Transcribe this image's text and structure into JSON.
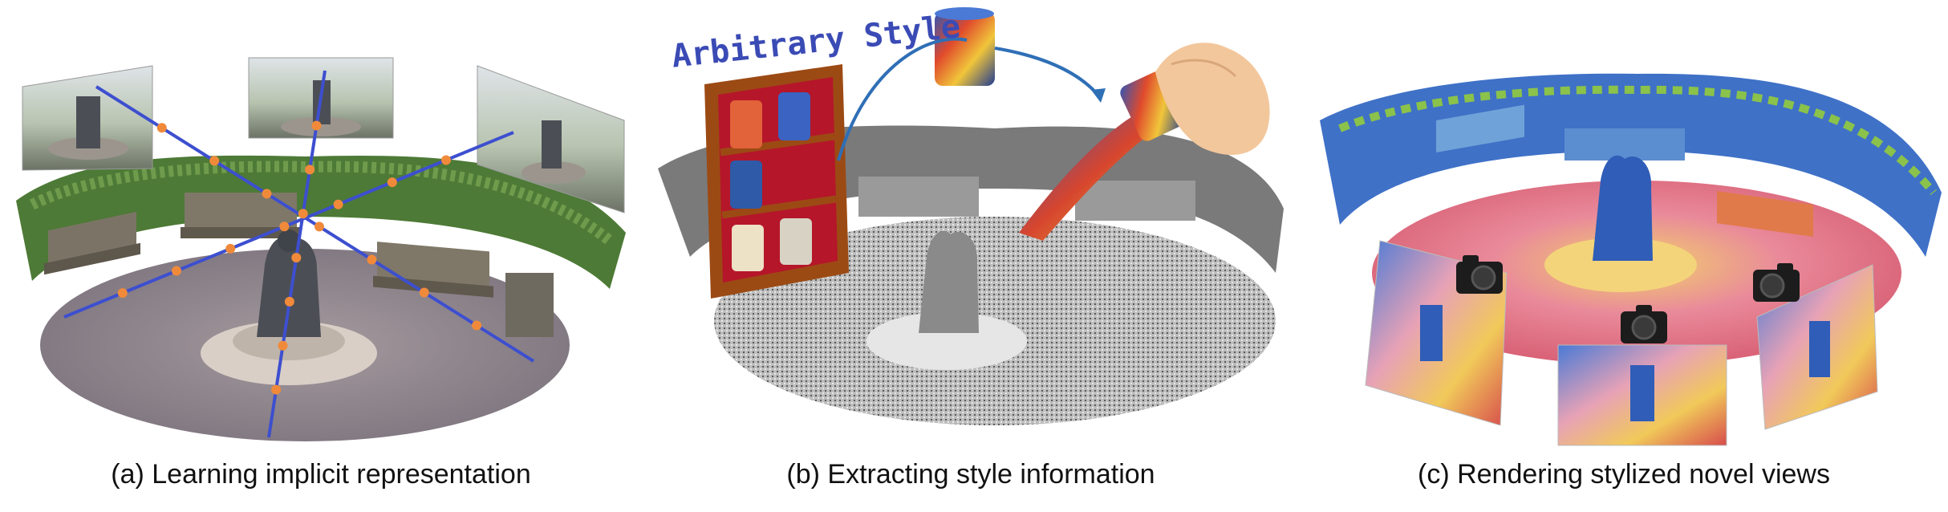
{
  "figure": {
    "panels": [
      {
        "caption": "(a) Learning implicit representation"
      },
      {
        "caption": "(b) Extracting style information",
        "style_label": "Arbitrary Style"
      },
      {
        "caption": "(c) Rendering stylized novel views"
      }
    ]
  },
  "colors": {
    "ray_line": "#3d4fcf",
    "sample_point": "#f08a3a",
    "shelf_wood": "#9c4a14",
    "shelf_back": "#b5162a",
    "style_label": "#3b4bb5",
    "caption_text": "#111111"
  },
  "icons": [
    "camera-icon",
    "hand-icon",
    "style-canister-icon",
    "bookshelf-icon",
    "arrow-icon"
  ]
}
